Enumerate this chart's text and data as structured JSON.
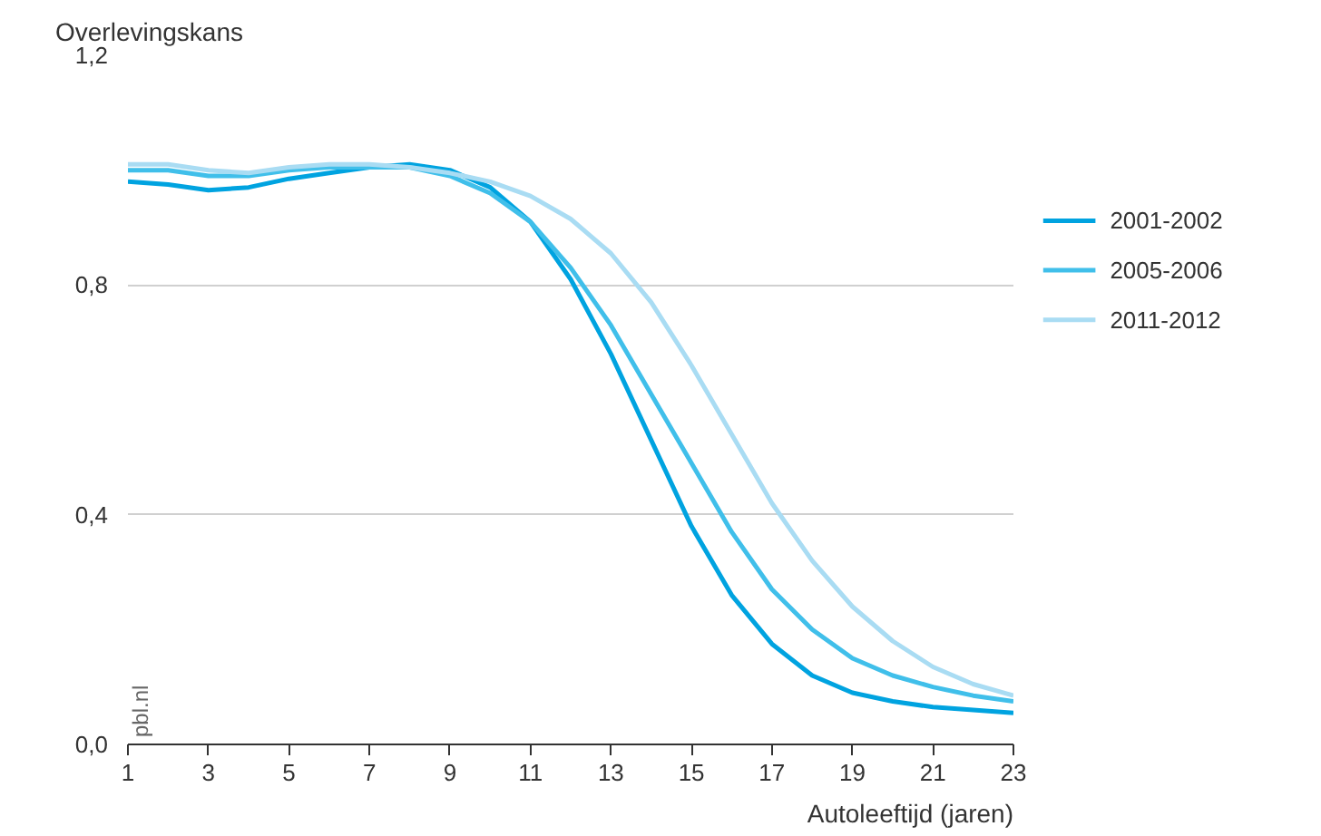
{
  "chart_data": {
    "type": "line",
    "ylabel": "Overlevingskans",
    "xlabel": "Autoleeftijd (jaren)",
    "x": [
      1,
      2,
      3,
      4,
      5,
      6,
      7,
      8,
      9,
      10,
      11,
      12,
      13,
      14,
      15,
      16,
      17,
      18,
      19,
      20,
      21,
      22,
      23
    ],
    "series": [
      {
        "name": "2001-2002",
        "color": "#00a3e0",
        "values": [
          0.98,
          0.975,
          0.965,
          0.97,
          0.985,
          0.995,
          1.005,
          1.01,
          1.0,
          0.97,
          0.91,
          0.81,
          0.68,
          0.53,
          0.38,
          0.26,
          0.175,
          0.12,
          0.09,
          0.075,
          0.065,
          0.06,
          0.055
        ]
      },
      {
        "name": "2005-2006",
        "color": "#40bfea",
        "values": [
          1.0,
          1.0,
          0.99,
          0.99,
          1.0,
          1.005,
          1.005,
          1.005,
          0.99,
          0.96,
          0.91,
          0.83,
          0.73,
          0.61,
          0.49,
          0.37,
          0.27,
          0.2,
          0.15,
          0.12,
          0.1,
          0.085,
          0.075
        ]
      },
      {
        "name": "2011-2012",
        "color": "#a9dcf3",
        "values": [
          1.01,
          1.01,
          1.0,
          0.995,
          1.005,
          1.01,
          1.01,
          1.005,
          0.995,
          0.98,
          0.955,
          0.915,
          0.855,
          0.77,
          0.66,
          0.54,
          0.42,
          0.32,
          0.24,
          0.18,
          0.135,
          0.105,
          0.085
        ]
      }
    ],
    "xlim": [
      1,
      23
    ],
    "xticks": [
      1,
      3,
      5,
      7,
      9,
      11,
      13,
      15,
      17,
      19,
      21,
      23
    ],
    "ylim": [
      0,
      1.2
    ],
    "yticks": [
      {
        "value": 0,
        "label": "0,0"
      },
      {
        "value": 0.4,
        "label": "0,4"
      },
      {
        "value": 0.8,
        "label": "0,8"
      },
      {
        "value": 1.2,
        "label": "1,2"
      }
    ],
    "grid": "y",
    "legend": "right",
    "marker": "none",
    "line_style": "solid",
    "annotations": [
      "pbl.nl"
    ]
  }
}
